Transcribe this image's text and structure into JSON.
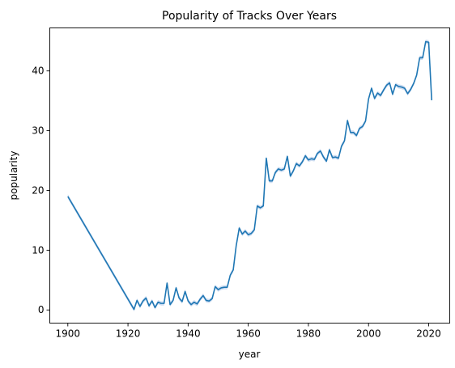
{
  "chart_data": {
    "type": "line",
    "title": "Popularity of Tracks Over Years",
    "xlabel": "year",
    "ylabel": "popularity",
    "xlim": [
      1894,
      2027
    ],
    "ylim": [
      -2.2,
      47.2
    ],
    "xticks": [
      1900,
      1920,
      1940,
      1960,
      1980,
      2000,
      2020
    ],
    "yticks": [
      0,
      10,
      20,
      30,
      40
    ],
    "grid": false,
    "legend": "none",
    "line_color": "#1f77b4",
    "band_color": "#aec7e8",
    "series": [
      {
        "x": [
          1900,
          1922,
          1923,
          1924,
          1925,
          1926,
          1927,
          1928,
          1929,
          1930,
          1931,
          1932,
          1933,
          1934,
          1935,
          1936,
          1937,
          1938,
          1939,
          1940,
          1941,
          1942,
          1943,
          1944,
          1945,
          1946,
          1947,
          1948,
          1949,
          1950,
          1951,
          1952,
          1953,
          1954,
          1955,
          1956,
          1957,
          1958,
          1959,
          1960,
          1961,
          1962,
          1963,
          1964,
          1965,
          1966,
          1967,
          1968,
          1969,
          1970,
          1971,
          1972,
          1973,
          1974,
          1975,
          1976,
          1977,
          1978,
          1979,
          1980,
          1981,
          1982,
          1983,
          1984,
          1985,
          1986,
          1987,
          1988,
          1989,
          1990,
          1991,
          1992,
          1993,
          1994,
          1995,
          1996,
          1997,
          1998,
          1999,
          2000,
          2001,
          2002,
          2003,
          2004,
          2005,
          2006,
          2007,
          2008,
          2009,
          2010,
          2011,
          2012,
          2013,
          2014,
          2015,
          2016,
          2017,
          2018,
          2019,
          2020,
          2021
        ],
        "values": [
          19.0,
          0.1,
          1.6,
          0.6,
          1.5,
          2.0,
          0.7,
          1.5,
          0.4,
          1.3,
          1.1,
          1.1,
          4.5,
          0.9,
          1.6,
          3.7,
          2.0,
          1.4,
          3.1,
          1.5,
          0.9,
          1.3,
          1.0,
          1.8,
          2.4,
          1.6,
          1.5,
          1.9,
          3.9,
          3.4,
          3.7,
          3.8,
          3.8,
          5.8,
          6.7,
          10.8,
          13.7,
          12.7,
          13.2,
          12.6,
          12.8,
          13.4,
          17.4,
          17.1,
          17.4,
          25.4,
          21.6,
          21.6,
          23.0,
          23.6,
          23.4,
          23.6,
          25.7,
          22.4,
          23.3,
          24.5,
          24.1,
          24.8,
          25.8,
          25.1,
          25.3,
          25.2,
          26.2,
          26.6,
          25.6,
          24.9,
          26.8,
          25.5,
          25.6,
          25.4,
          27.4,
          28.3,
          31.7,
          29.7,
          29.7,
          29.2,
          30.4,
          30.7,
          31.6,
          35.3,
          37.1,
          35.4,
          36.3,
          35.9,
          36.8,
          37.6,
          38.0,
          36.1,
          37.7,
          37.4,
          37.3,
          37.1,
          36.2,
          36.9,
          37.9,
          39.3,
          42.2,
          42.2,
          44.9,
          44.8,
          35.1
        ]
      }
    ]
  }
}
